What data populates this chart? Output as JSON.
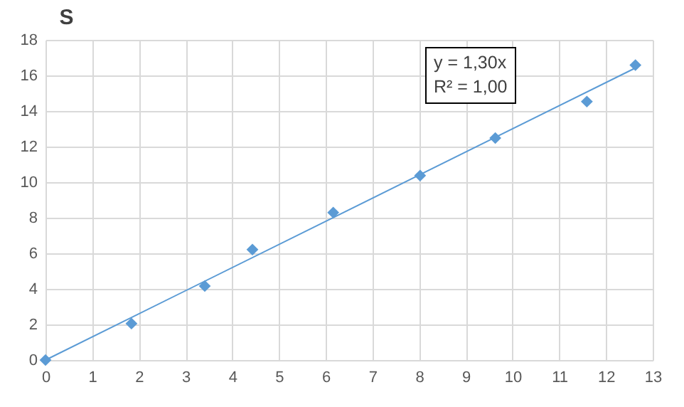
{
  "chart_data": {
    "type": "scatter",
    "title": "S",
    "x": [
      0,
      1.84,
      3.41,
      4.43,
      6.16,
      8.02,
      9.63,
      11.59,
      12.63
    ],
    "series": [
      {
        "color": "#5b9bd5",
        "marker": "diamond",
        "values": [
          0,
          2.05,
          4.16,
          6.21,
          8.29,
          10.37,
          12.48,
          14.53,
          16.58
        ]
      },
      {
        "type": "line",
        "color": "#5b9bd5",
        "marker": "none",
        "x": [
          0,
          12.63
        ],
        "values": [
          0,
          16.42
        ]
      }
    ],
    "xlim": [
      0,
      13
    ],
    "xticks": [
      0,
      1,
      2,
      3,
      4,
      5,
      6,
      7,
      8,
      9,
      10,
      11,
      12,
      13
    ],
    "ylim": [
      0,
      18
    ],
    "yticks": [
      0,
      2,
      4,
      6,
      8,
      10,
      12,
      14,
      16,
      18
    ],
    "grid": true,
    "annotations": [
      "y = 1,30x\nR² = 1,00"
    ]
  }
}
